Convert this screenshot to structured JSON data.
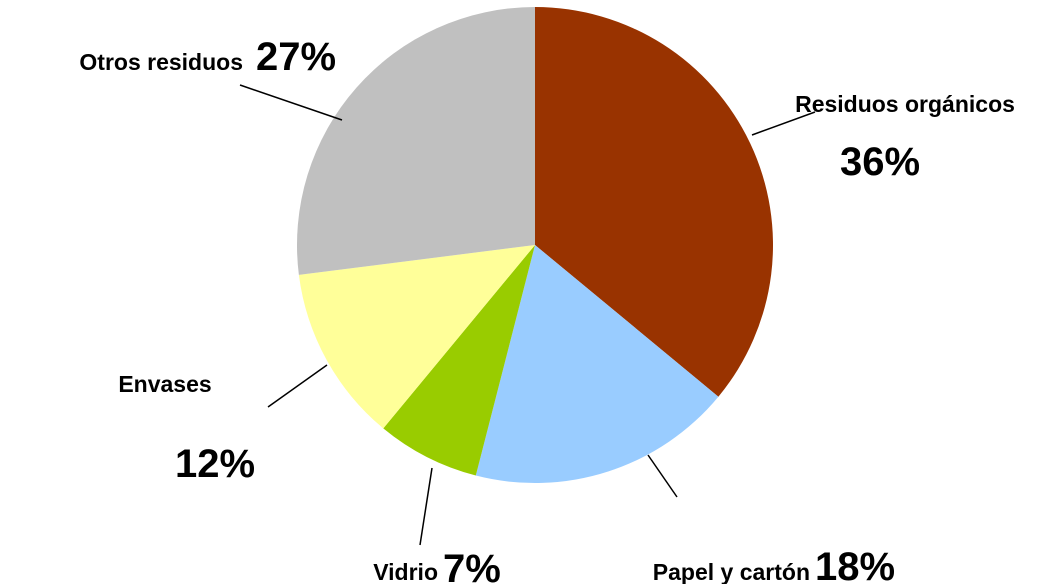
{
  "chart_data": {
    "type": "pie",
    "categories": [
      "Residuos orgánicos",
      "Papel y cartón",
      "Vidrio",
      "Envases",
      "Otros residuos"
    ],
    "values": [
      36,
      18,
      7,
      12,
      27
    ],
    "value_labels": [
      "36%",
      "18%",
      "7%",
      "12%",
      "27%"
    ],
    "colors": [
      "#993300",
      "#99ccff",
      "#99cc00",
      "#ffff99",
      "#c0c0c0"
    ]
  }
}
